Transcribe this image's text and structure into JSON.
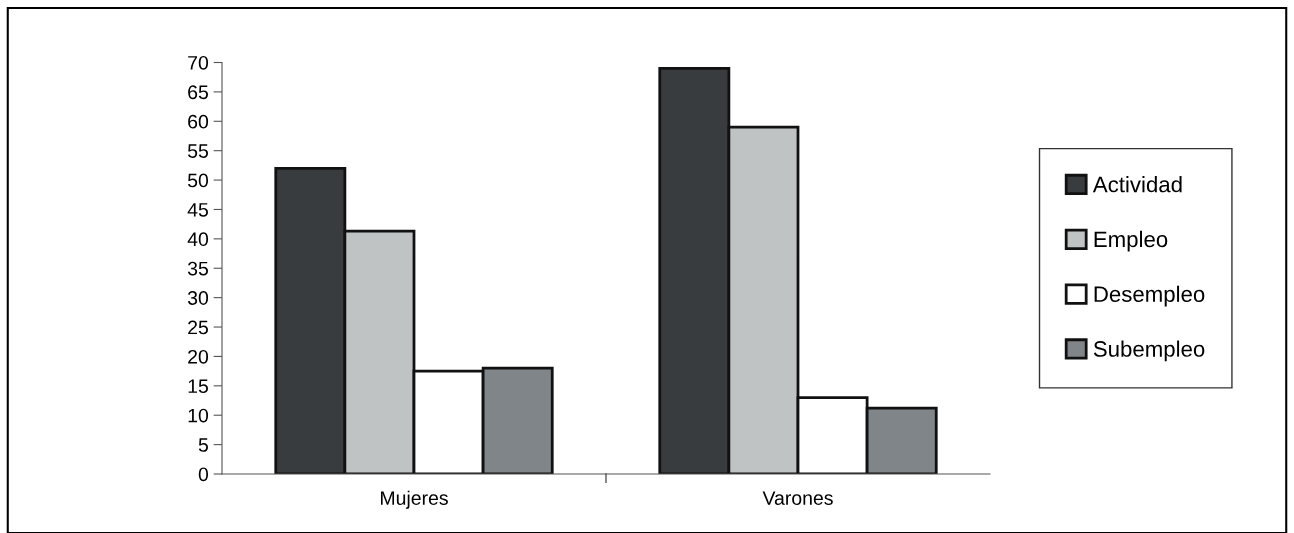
{
  "chart_data": {
    "type": "bar",
    "categories": [
      "Mujeres",
      "Varones"
    ],
    "series": [
      {
        "name": "Actividad",
        "color": "#383c3f",
        "values": [
          52,
          69
        ]
      },
      {
        "name": "Empleo",
        "color": "#c0c3c4",
        "values": [
          41.3,
          59
        ]
      },
      {
        "name": "Desempleo",
        "color": "#ffffff",
        "values": [
          17.5,
          13
        ]
      },
      {
        "name": "Subempleo",
        "color": "#7f8588",
        "values": [
          18,
          11.2
        ]
      }
    ],
    "ylim": [
      0,
      70
    ],
    "yticks": [
      0,
      5,
      10,
      15,
      20,
      25,
      30,
      35,
      40,
      45,
      50,
      55,
      60,
      65,
      70
    ],
    "grid": false,
    "legend": "right"
  }
}
